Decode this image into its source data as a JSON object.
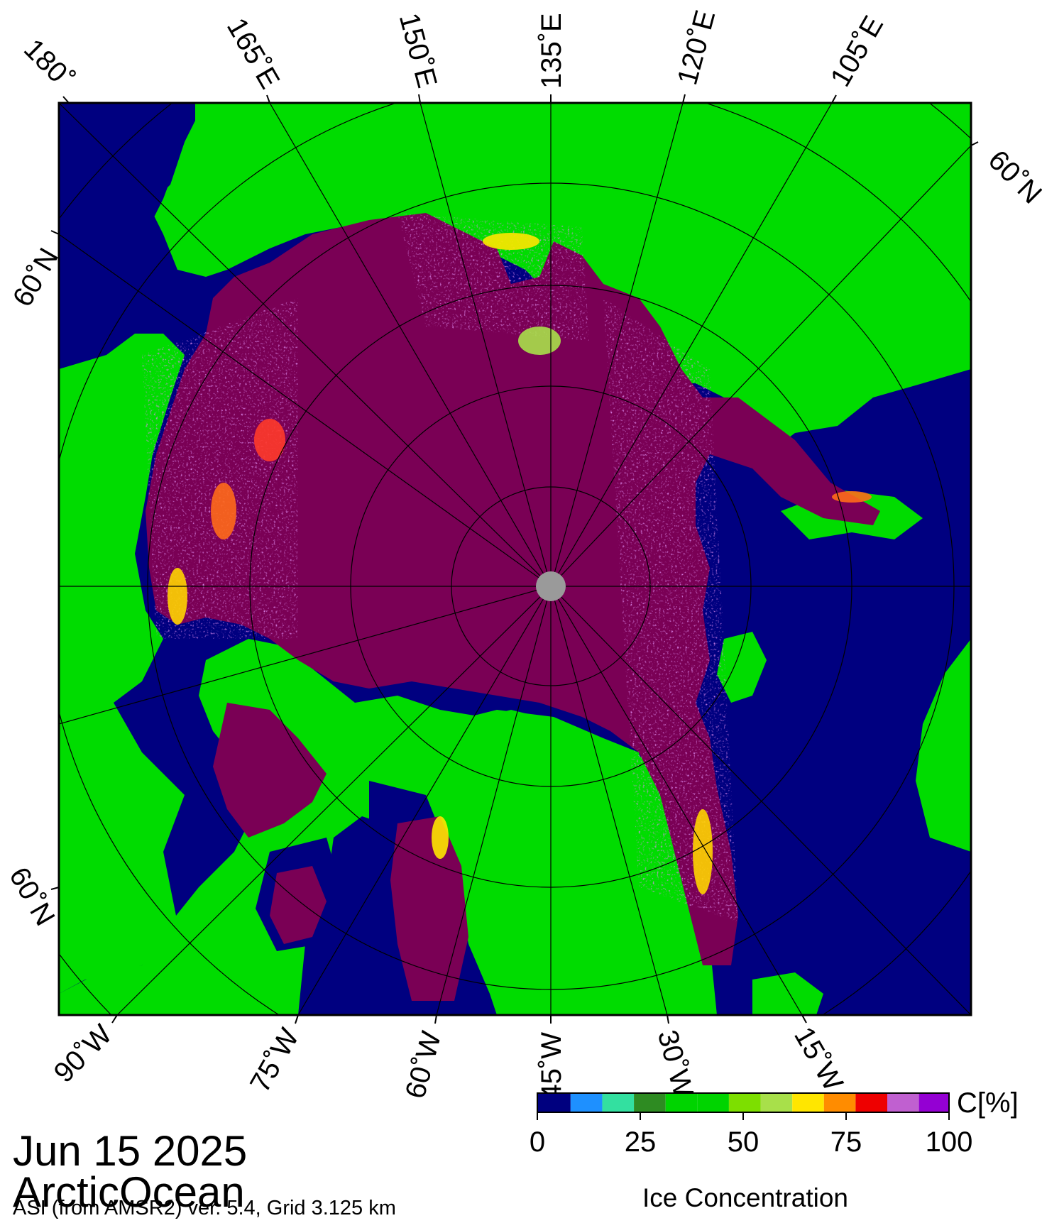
{
  "map": {
    "projection": "north polar stereographic",
    "pole_marker": "grey",
    "meridian_labels_top": [
      "180˚",
      "165˚E",
      "150˚E",
      "135˚E",
      "120˚E",
      "105˚E"
    ],
    "meridian_labels_bottom": [
      "90˚W",
      "75˚W",
      "60˚W",
      "45˚W",
      "30˚W",
      "15˚W"
    ],
    "parallel_labels": [
      "60˚N",
      "60˚N",
      "60˚N"
    ]
  },
  "info": {
    "date": "Jun 15 2025",
    "region": "ArcticOcean",
    "product": "ASI (from AMSR2) ver. 5.4,  Grid 3.125 km"
  },
  "colorbar": {
    "title": "Ice Concentration",
    "unit": "C[%]",
    "ticks": [
      "0",
      "25",
      "50",
      "75",
      "100"
    ],
    "colors": [
      "#00007f",
      "#1e90ff",
      "#33e0a0",
      "#2e8b22",
      "#00d400",
      "#00d400",
      "#7ddf00",
      "#a8e04a",
      "#ffe600",
      "#ff8c00",
      "#ee0000",
      "#c060d0",
      "#9400d3"
    ]
  },
  "colors": {
    "ocean": "#000080",
    "land": "#00dc00",
    "ice": "#7a0055",
    "pole": "#9a9a9a"
  }
}
